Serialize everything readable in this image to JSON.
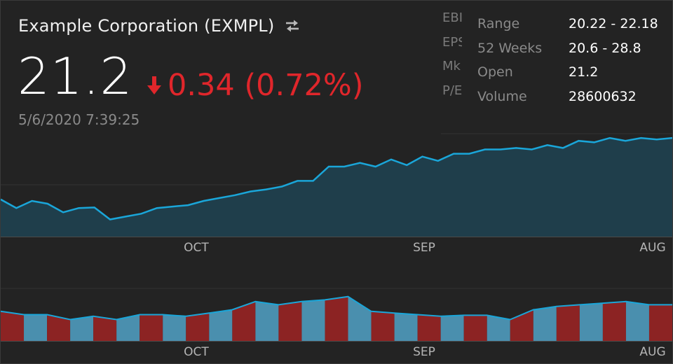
{
  "header": {
    "title": "Example Corporation (EXMPL)",
    "swap_icon": "swap-arrows-icon",
    "price": "21.2",
    "change": "0.34 (0.72%)",
    "change_direction_icon": "arrow-down-icon",
    "timestamp": "5/6/2020 7:39:25"
  },
  "stats_hidden": [
    "EBI",
    "EPS",
    "Mk",
    "P/E"
  ],
  "stats": [
    {
      "label": "Range",
      "value": "20.22 - 22.18"
    },
    {
      "label": "52 Weeks",
      "value": "20.6 - 28.8"
    },
    {
      "label": "Open",
      "value": "21.2"
    },
    {
      "label": "Volume",
      "value": "28600632"
    }
  ],
  "colors": {
    "background": "#232323",
    "line": "#1aa6d9",
    "area": "#1f3e4b",
    "down": "#e0262b",
    "volume_up": "#4a8fae",
    "volume_down": "#8c2323"
  },
  "axis_labels": [
    "OCT",
    "SEP",
    "AUG"
  ],
  "chart_data": [
    {
      "type": "area",
      "y_axis_scale": "not shown",
      "x_labels": [
        "OCT",
        "SEP",
        "AUG"
      ],
      "values": [
        13,
        10,
        12.5,
        11.5,
        8.5,
        10,
        10.2,
        6,
        7,
        8,
        10,
        10.5,
        11,
        12.5,
        13.5,
        14.5,
        15.8,
        16.5,
        17.5,
        19.5,
        19.5,
        24.5,
        24.5,
        25.8,
        24.5,
        27,
        25,
        28,
        26.5,
        29,
        29,
        30.5,
        30.5,
        31,
        30.5,
        32,
        31,
        33.5,
        33,
        34.5,
        33.5,
        34.5,
        34,
        34.5
      ]
    },
    {
      "type": "area",
      "y_axis_scale": "not shown",
      "x_labels": [
        "OCT",
        "SEP",
        "AUG"
      ],
      "values": [
        9,
        8,
        8,
        6.5,
        7.5,
        6.5,
        8,
        8,
        7.5,
        8.5,
        9.5,
        12,
        11,
        12,
        12.5,
        13.5,
        9,
        8.5,
        8,
        7.5,
        7.8,
        7.8,
        6.5,
        9.5,
        10.5,
        11,
        11.5,
        12,
        11,
        11
      ]
    }
  ]
}
